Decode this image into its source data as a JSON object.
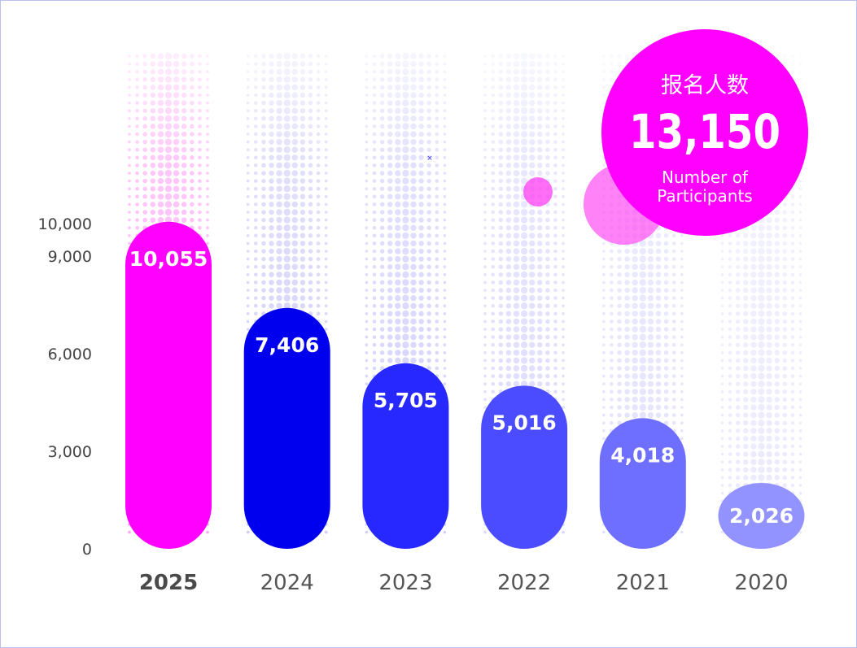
{
  "chart_data": {
    "type": "bar",
    "categories": [
      "2025",
      "2024",
      "2023",
      "2022",
      "2021",
      "2020"
    ],
    "values": [
      10055,
      7406,
      5705,
      5016,
      4018,
      2026
    ],
    "value_labels": [
      "10,055",
      "7,406",
      "5,705",
      "5,016",
      "4,018",
      "2,026"
    ],
    "highlight_category": "2025",
    "yticks": [
      0,
      3000,
      6000,
      9000,
      10000
    ],
    "ytick_labels": [
      "0",
      "3,000",
      "6,000",
      "9,000",
      "10,000"
    ],
    "ylim": [
      0,
      13150
    ],
    "grid": false,
    "legend": "none",
    "colors": [
      "#ff00ff",
      "#0000ee",
      "#2727ff",
      "#4b4bff",
      "#6f6fff",
      "#9393ff"
    ],
    "background_dot_colors": [
      "#ff9cf5",
      "#c9c6f7",
      "#cbc9fb",
      "#d6d4fc",
      "#deddfd",
      "#e8e7fe"
    ]
  },
  "badge": {
    "title_cn": "报名人数",
    "value": "13,150",
    "subtitle_line1": "Number of",
    "subtitle_line2": "Participants",
    "color": "#ff00ff"
  }
}
